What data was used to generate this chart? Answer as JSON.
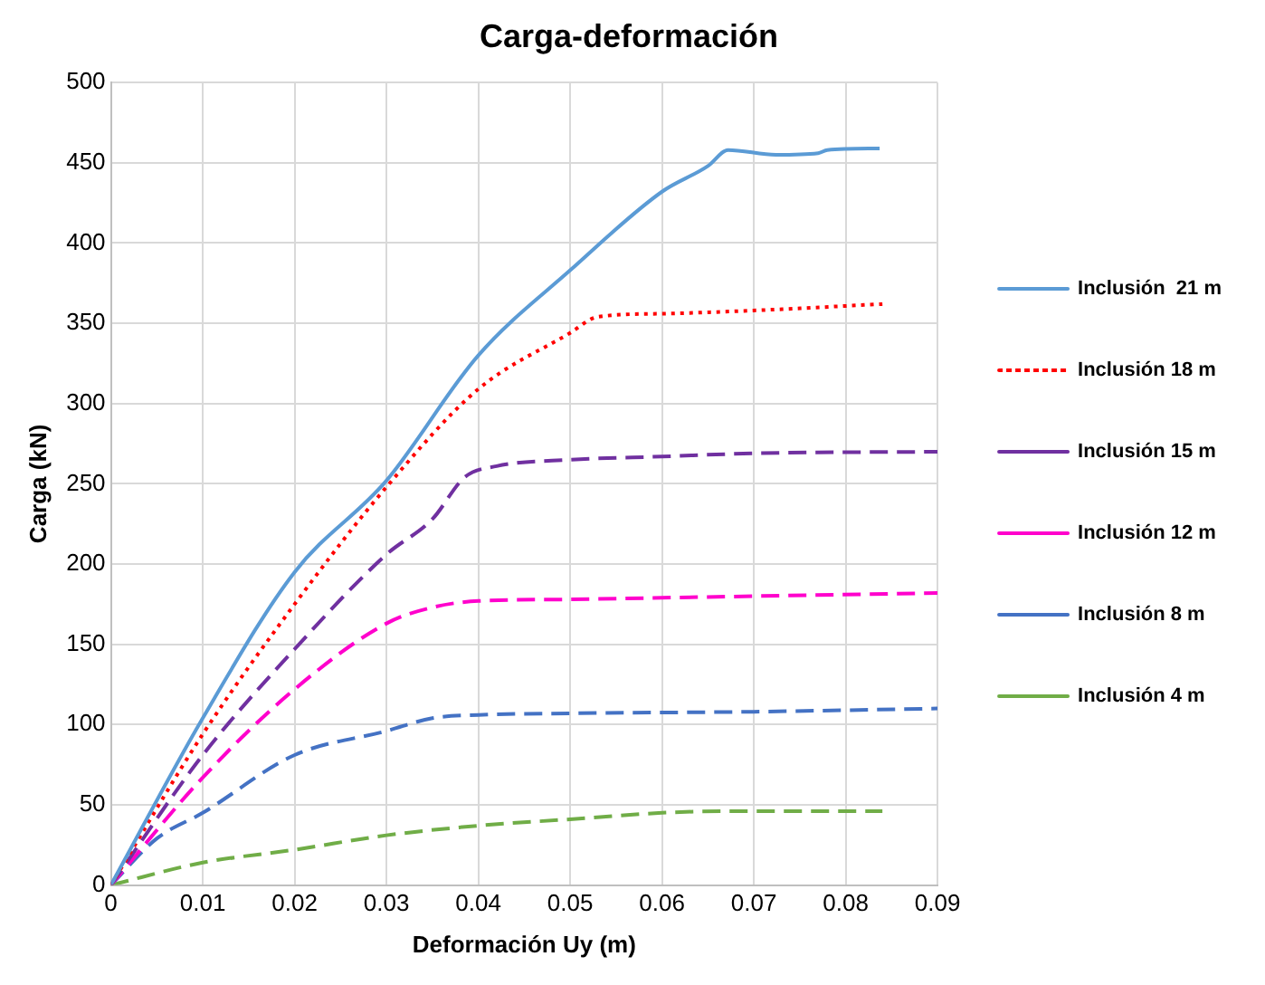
{
  "chart_data": {
    "type": "line",
    "title": "Carga-deformación",
    "xlabel": "Deformación Uy (m)",
    "ylabel": "Carga (kN)",
    "xlim": [
      0,
      0.09
    ],
    "xticks": [
      {
        "value": 0,
        "label": "0"
      },
      0.01,
      0.02,
      0.03,
      0.04,
      0.05,
      0.06,
      0.07,
      0.08,
      0.09
    ],
    "ylim": [
      0,
      500
    ],
    "yticks": [
      0,
      50,
      100,
      150,
      200,
      250,
      300,
      350,
      400,
      450,
      500
    ],
    "grid": true,
    "legend": "right",
    "marker": "none",
    "series": [
      {
        "name": "Inclusión  21 m",
        "color": "#5b9bd5",
        "line_style": "solid",
        "x": [
          0,
          0.01,
          0.02,
          0.03,
          0.04,
          0.05,
          0.06,
          0.065,
          0.0672,
          0.0724,
          0.077,
          0.078,
          0.0837
        ],
        "values": [
          0,
          104,
          195,
          252,
          330,
          383,
          432,
          448,
          458,
          455,
          456,
          458,
          459
        ]
      },
      {
        "name": "Inclusión 18 m",
        "color": "#ff0000",
        "line_style": "dotted",
        "x": [
          0,
          0.01,
          0.02,
          0.03,
          0.04,
          0.05,
          0.053,
          0.06,
          0.07,
          0.084
        ],
        "values": [
          0,
          94,
          175,
          248,
          309,
          344,
          354,
          356,
          358,
          362
        ]
      },
      {
        "name": "Inclusión 15 m",
        "color": "#7030a0",
        "line_style": "dashed",
        "x": [
          0,
          0.01,
          0.02,
          0.03,
          0.035,
          0.0385,
          0.042,
          0.05,
          0.06,
          0.07,
          0.09
        ],
        "values": [
          0,
          81,
          147,
          206,
          228,
          254,
          261,
          265,
          267,
          269,
          270
        ]
      },
      {
        "name": "Inclusión 12 m",
        "color": "#ff00cc",
        "line_style": "dashed",
        "x": [
          0,
          0.01,
          0.02,
          0.03,
          0.035,
          0.04,
          0.05,
          0.06,
          0.07,
          0.09
        ],
        "values": [
          0,
          67,
          122,
          163,
          173,
          177,
          178,
          179,
          180,
          182
        ]
      },
      {
        "name": "Inclusión 8 m",
        "color": "#4472c4",
        "line_style": "dashed",
        "x": [
          0,
          0.005,
          0.01,
          0.02,
          0.03,
          0.035,
          0.04,
          0.05,
          0.07,
          0.09
        ],
        "values": [
          0,
          29,
          45,
          81,
          96,
          104,
          106,
          107,
          108,
          110
        ]
      },
      {
        "name": "Inclusión 4 m",
        "color": "#70ad47",
        "line_style": "dashed",
        "x": [
          0,
          0.01,
          0.02,
          0.03,
          0.04,
          0.05,
          0.06,
          0.067,
          0.084
        ],
        "values": [
          0,
          14,
          22,
          31,
          37,
          41,
          45,
          46,
          46
        ]
      }
    ]
  }
}
